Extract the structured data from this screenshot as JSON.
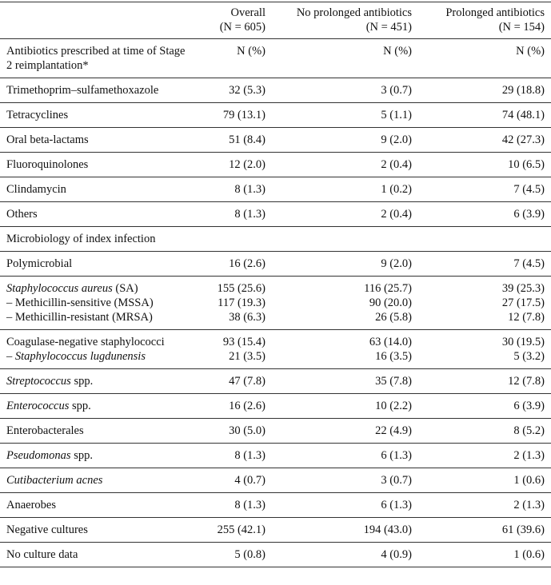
{
  "table": {
    "columns": [
      {
        "title": "Overall",
        "sub": "(N = 605)"
      },
      {
        "title": "No prolonged antibiotics",
        "sub": "(N = 451)"
      },
      {
        "title": "Prolonged antibiotics",
        "sub": "(N = 154)"
      }
    ],
    "rows": [
      {
        "heading": "Antibiotics prescribed at time of Stage 2 reimplantation*",
        "cells": [
          "N (%)",
          "N (%)",
          "N (%)"
        ]
      },
      {
        "lines": [
          {
            "label": [
              {
                "text": "Trimethoprim–sulfamethoxazole"
              }
            ],
            "cells": [
              "32 (5.3)",
              "3 (0.7)",
              "29 (18.8)"
            ]
          }
        ]
      },
      {
        "lines": [
          {
            "label": [
              {
                "text": "Tetracyclines"
              }
            ],
            "cells": [
              "79 (13.1)",
              "5 (1.1)",
              "74 (48.1)"
            ]
          }
        ]
      },
      {
        "lines": [
          {
            "label": [
              {
                "text": "Oral beta-lactams"
              }
            ],
            "cells": [
              "51 (8.4)",
              "9 (2.0)",
              "42 (27.3)"
            ]
          }
        ]
      },
      {
        "lines": [
          {
            "label": [
              {
                "text": "Fluoroquinolones"
              }
            ],
            "cells": [
              "12 (2.0)",
              "2 (0.4)",
              "10 (6.5)"
            ]
          }
        ]
      },
      {
        "lines": [
          {
            "label": [
              {
                "text": "Clindamycin"
              }
            ],
            "cells": [
              "8 (1.3)",
              "1 (0.2)",
              "7 (4.5)"
            ]
          }
        ]
      },
      {
        "lines": [
          {
            "label": [
              {
                "text": "Others"
              }
            ],
            "cells": [
              "8 (1.3)",
              "2 (0.4)",
              "6 (3.9)"
            ]
          }
        ]
      },
      {
        "heading": "Microbiology of index infection"
      },
      {
        "lines": [
          {
            "label": [
              {
                "text": "Polymicrobial"
              }
            ],
            "cells": [
              "16 (2.6)",
              "9 (2.0)",
              "7 (4.5)"
            ]
          }
        ]
      },
      {
        "lines": [
          {
            "label": [
              {
                "text": "Staphylococcus aureus",
                "italic": true
              },
              {
                "text": " (SA)"
              }
            ],
            "cells": [
              "155 (25.6)",
              "116 (25.7)",
              "39 (25.3)"
            ]
          },
          {
            "label": [
              {
                "text": "– Methicillin-sensitive (MSSA)"
              }
            ],
            "cells": [
              "117 (19.3)",
              "90 (20.0)",
              "27 (17.5)"
            ]
          },
          {
            "label": [
              {
                "text": "– Methicillin-resistant (MRSA)"
              }
            ],
            "cells": [
              "38 (6.3)",
              "26 (5.8)",
              "12 (7.8)"
            ]
          }
        ]
      },
      {
        "lines": [
          {
            "label": [
              {
                "text": "Coagulase-negative staphylococci"
              }
            ],
            "cells": [
              "93 (15.4)",
              "63 (14.0)",
              "30 (19.5)"
            ]
          },
          {
            "label": [
              {
                "text": "– "
              },
              {
                "text": "Staphylococcus lugdunensis",
                "italic": true
              }
            ],
            "cells": [
              "21 (3.5)",
              "16 (3.5)",
              "5 (3.2)"
            ]
          }
        ]
      },
      {
        "lines": [
          {
            "label": [
              {
                "text": "Streptococcus",
                "italic": true
              },
              {
                "text": " spp."
              }
            ],
            "cells": [
              "47 (7.8)",
              "35 (7.8)",
              "12 (7.8)"
            ]
          }
        ]
      },
      {
        "lines": [
          {
            "label": [
              {
                "text": "Enterococcus",
                "italic": true
              },
              {
                "text": " spp."
              }
            ],
            "cells": [
              "16 (2.6)",
              "10 (2.2)",
              "6 (3.9)"
            ]
          }
        ]
      },
      {
        "lines": [
          {
            "label": [
              {
                "text": "Enterobacterales"
              }
            ],
            "cells": [
              "30 (5.0)",
              "22 (4.9)",
              "8 (5.2)"
            ]
          }
        ]
      },
      {
        "lines": [
          {
            "label": [
              {
                "text": "Pseudomonas",
                "italic": true
              },
              {
                "text": " spp."
              }
            ],
            "cells": [
              "8 (1.3)",
              "6 (1.3)",
              "2 (1.3)"
            ]
          }
        ]
      },
      {
        "lines": [
          {
            "label": [
              {
                "text": "Cutibacterium acnes",
                "italic": true
              }
            ],
            "cells": [
              "4 (0.7)",
              "3 (0.7)",
              "1 (0.6)"
            ]
          }
        ]
      },
      {
        "lines": [
          {
            "label": [
              {
                "text": "Anaerobes"
              }
            ],
            "cells": [
              "8 (1.3)",
              "6 (1.3)",
              "2 (1.3)"
            ]
          }
        ]
      },
      {
        "lines": [
          {
            "label": [
              {
                "text": "Negative cultures"
              }
            ],
            "cells": [
              "255 (42.1)",
              "194 (43.0)",
              "61 (39.6)"
            ]
          }
        ]
      },
      {
        "lines": [
          {
            "label": [
              {
                "text": "No culture data"
              }
            ],
            "cells": [
              "5 (0.8)",
              "4 (0.9)",
              "1 (0.6)"
            ]
          }
        ]
      }
    ]
  }
}
